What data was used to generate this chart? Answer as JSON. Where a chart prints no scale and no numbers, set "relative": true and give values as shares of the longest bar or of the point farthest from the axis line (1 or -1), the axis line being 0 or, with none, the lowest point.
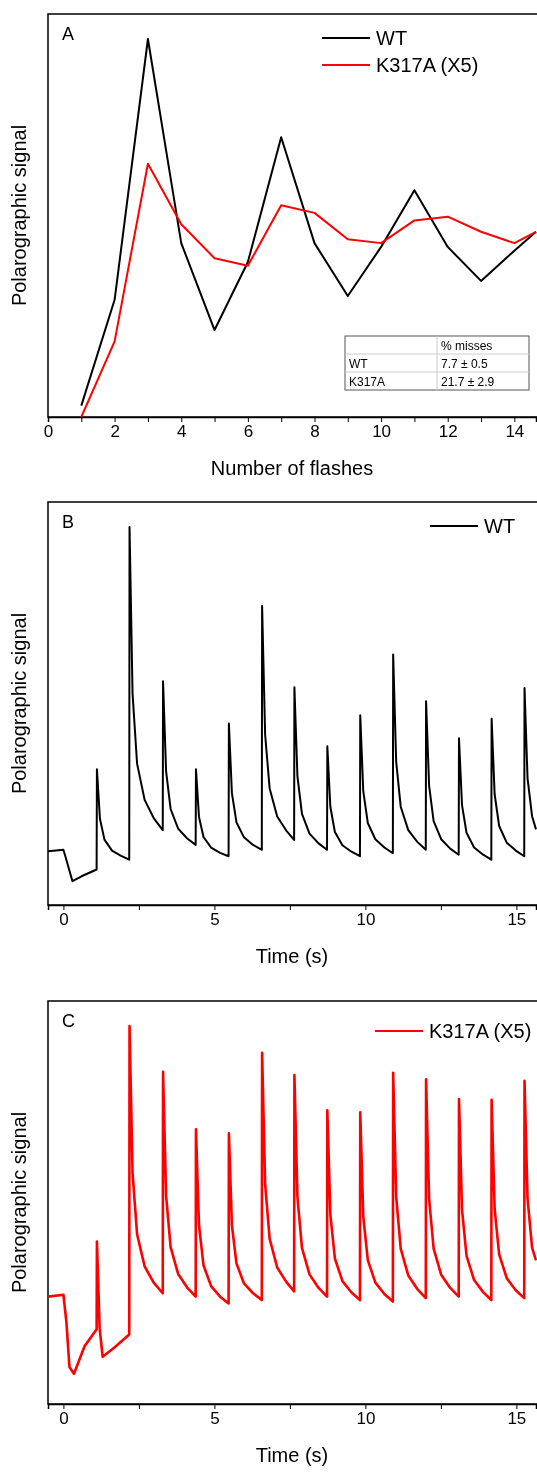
{
  "chart_data": [
    {
      "type": "line",
      "title": "A",
      "xlabel": "Number of flashes",
      "ylabel": "Polarographic signal",
      "relative": true,
      "legend": "top right",
      "x": [
        1,
        2,
        3,
        4,
        5,
        6,
        7,
        8,
        9,
        10,
        11,
        12,
        13,
        14,
        14.65
      ],
      "xlim": [
        0,
        14.65
      ],
      "xticks": [
        0,
        {
          "value": 1,
          "label": null
        },
        2,
        {
          "value": 3,
          "label": null
        },
        4,
        {
          "value": 5,
          "label": null
        },
        6,
        {
          "value": 7,
          "label": null
        },
        8,
        {
          "value": 9,
          "label": null
        },
        10,
        {
          "value": 11,
          "label": null
        },
        12,
        {
          "value": 13,
          "label": null
        },
        14
      ],
      "series": [
        {
          "name": "WT",
          "color": "#000000",
          "values": [
            0.03,
            0.31,
            1.0,
            0.46,
            0.23,
            0.41,
            0.74,
            0.46,
            0.32,
            0.45,
            0.6,
            0.45,
            0.36,
            0.44,
            0.49
          ]
        },
        {
          "name": "K317A (X5)",
          "color": "#ff0000",
          "values": [
            0.0,
            0.2,
            0.67,
            0.51,
            0.42,
            0.4,
            0.56,
            0.54,
            0.47,
            0.46,
            0.52,
            0.53,
            0.49,
            0.46,
            0.49
          ]
        }
      ],
      "annotations": [
        "% misses",
        "WT",
        "7.7 ± 0.5",
        "K317A",
        "21.7 ± 2.9"
      ]
    },
    {
      "type": "line",
      "title": "B",
      "xlabel": "Time (s)",
      "ylabel": "Polarographic signal",
      "relative": true,
      "legend": "top right",
      "xlim": [
        -0.51,
        15.65
      ],
      "xticks": [
        0,
        {
          "value": 2.5,
          "label": null
        },
        5,
        {
          "value": 7.5,
          "label": null
        },
        10,
        {
          "value": 12.5,
          "label": null
        },
        15
      ],
      "series": [
        {
          "name": "WT",
          "color": "#000000",
          "x": [
            -0.51,
            0,
            0.05,
            0.3,
            0.6,
            1.1,
            1.11,
            1.21,
            1.36,
            1.61,
            1.91,
            2.18,
            2.19,
            2.29,
            2.44,
            2.69,
            2.99,
            3.29,
            3.3,
            3.4,
            3.55,
            3.8,
            4.1,
            4.38,
            4.39,
            4.49,
            4.64,
            4.89,
            5.19,
            5.47,
            5.48,
            5.58,
            5.73,
            5.98,
            6.28,
            6.57,
            6.58,
            6.68,
            6.83,
            7.08,
            7.38,
            7.64,
            7.65,
            7.75,
            7.9,
            8.15,
            8.45,
            8.73,
            8.74,
            8.84,
            8.99,
            9.24,
            9.54,
            9.82,
            9.83,
            9.93,
            10.08,
            10.33,
            10.63,
            10.91,
            10.92,
            11.02,
            11.17,
            11.42,
            11.72,
            12.0,
            12.01,
            12.11,
            12.26,
            12.51,
            12.81,
            13.09,
            13.1,
            13.2,
            13.35,
            13.6,
            13.9,
            14.17,
            14.18,
            14.28,
            14.43,
            14.68,
            14.98,
            15.26,
            15.27,
            15.37,
            15.52,
            15.65
          ],
          "values": [
            0.142,
            0.146,
            0.133,
            0.063,
            0.076,
            0.094,
            0.359,
            0.228,
            0.173,
            0.144,
            0.13,
            0.12,
            1.0,
            0.559,
            0.374,
            0.278,
            0.23,
            0.198,
            0.592,
            0.354,
            0.254,
            0.202,
            0.176,
            0.159,
            0.359,
            0.233,
            0.18,
            0.152,
            0.138,
            0.129,
            0.48,
            0.296,
            0.219,
            0.179,
            0.159,
            0.146,
            0.791,
            0.451,
            0.308,
            0.234,
            0.197,
            0.172,
            0.576,
            0.34,
            0.241,
            0.189,
            0.163,
            0.146,
            0.42,
            0.26,
            0.193,
            0.158,
            0.141,
            0.129,
            0.502,
            0.301,
            0.217,
            0.174,
            0.152,
            0.137,
            0.663,
            0.379,
            0.26,
            0.198,
            0.167,
            0.146,
            0.539,
            0.316,
            0.222,
            0.174,
            0.149,
            0.133,
            0.441,
            0.264,
            0.191,
            0.152,
            0.133,
            0.12,
            0.493,
            0.293,
            0.209,
            0.165,
            0.144,
            0.129,
            0.574,
            0.335,
            0.235,
            0.2
          ]
        }
      ]
    },
    {
      "type": "line",
      "title": "C",
      "xlabel": "Time (s)",
      "ylabel": "Polarographic signal",
      "relative": true,
      "legend": "top right",
      "xlim": [
        -0.51,
        15.65
      ],
      "xticks": [
        0,
        {
          "value": 2.5,
          "label": null
        },
        5,
        {
          "value": 7.5,
          "label": null
        },
        10,
        {
          "value": 12.5,
          "label": null
        },
        15
      ],
      "series": [
        {
          "name": "K317A (X5)",
          "color": "#ff0000",
          "x": [
            -0.51,
            0,
            0.1,
            0.2,
            0.35,
            0.7,
            1.1,
            1.11,
            1.2,
            1.3,
            1.7,
            2.18,
            2.19,
            2.29,
            2.44,
            2.69,
            2.99,
            3.29,
            3.3,
            3.4,
            3.55,
            3.8,
            4.1,
            4.38,
            4.39,
            4.49,
            4.64,
            4.89,
            5.19,
            5.47,
            5.48,
            5.58,
            5.73,
            5.98,
            6.28,
            6.57,
            6.58,
            6.68,
            6.83,
            7.08,
            7.38,
            7.64,
            7.65,
            7.75,
            7.9,
            8.15,
            8.45,
            8.73,
            8.74,
            8.84,
            8.99,
            9.24,
            9.54,
            9.82,
            9.83,
            9.93,
            10.08,
            10.33,
            10.63,
            10.91,
            10.92,
            11.02,
            11.17,
            11.42,
            11.72,
            12.0,
            12.01,
            12.11,
            12.26,
            12.51,
            12.81,
            13.09,
            13.1,
            13.2,
            13.35,
            13.6,
            13.9,
            14.17,
            14.18,
            14.28,
            14.43,
            14.68,
            14.98,
            15.26,
            15.27,
            15.37,
            15.52,
            15.65
          ],
          "values": [
            0.284,
            0.289,
            0.216,
            0.098,
            0.08,
            0.153,
            0.198,
            0.43,
            0.2,
            0.125,
            0.15,
            0.184,
            1.0,
            0.611,
            0.449,
            0.364,
            0.321,
            0.293,
            0.879,
            0.552,
            0.415,
            0.344,
            0.308,
            0.284,
            0.727,
            0.473,
            0.367,
            0.312,
            0.284,
            0.266,
            0.716,
            0.473,
            0.372,
            0.319,
            0.293,
            0.275,
            0.929,
            0.582,
            0.437,
            0.361,
            0.323,
            0.298,
            0.87,
            0.548,
            0.413,
            0.343,
            0.307,
            0.284,
            0.777,
            0.501,
            0.385,
            0.325,
            0.295,
            0.275,
            0.772,
            0.496,
            0.381,
            0.321,
            0.291,
            0.271,
            0.876,
            0.548,
            0.411,
            0.34,
            0.304,
            0.28,
            0.859,
            0.543,
            0.411,
            0.342,
            0.307,
            0.284,
            0.807,
            0.514,
            0.392,
            0.328,
            0.296,
            0.275,
            0.805,
            0.516,
            0.396,
            0.333,
            0.301,
            0.28,
            0.855,
            0.544,
            0.414,
            0.38
          ]
        }
      ]
    }
  ]
}
